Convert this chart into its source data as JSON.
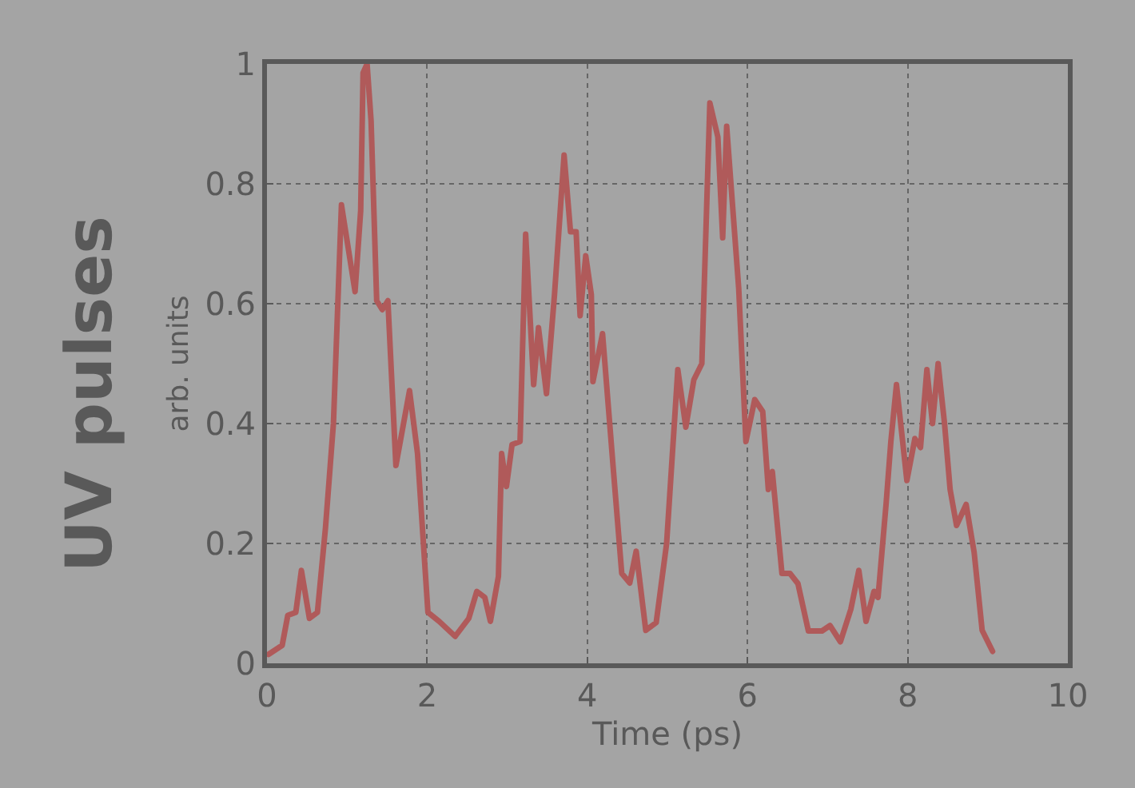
{
  "chart_data": {
    "type": "line",
    "xlabel": "Time (ps)",
    "ylabel": "arb. units",
    "annotations": [
      "UV pulses"
    ],
    "xlim": [
      0,
      10
    ],
    "xticks": [
      0,
      2,
      4,
      6,
      8,
      10
    ],
    "ylim": [
      0,
      1
    ],
    "yticks": [
      0,
      0.2,
      0.4,
      0.6,
      0.8,
      1
    ],
    "grid": true,
    "marker": "none",
    "line_style": "solid",
    "series": [
      {
        "color": "#b05a5a",
        "x": [
          0.02,
          0.19,
          0.26,
          0.36,
          0.43,
          0.53,
          0.63,
          0.73,
          0.83,
          0.93,
          1.1,
          1.17,
          1.2,
          1.25,
          1.3,
          1.37,
          1.44,
          1.51,
          1.61,
          1.78,
          1.88,
          2.01,
          2.15,
          2.35,
          2.52,
          2.62,
          2.72,
          2.79,
          2.89,
          2.93,
          2.99,
          3.06,
          3.16,
          3.23,
          3.33,
          3.39,
          3.49,
          3.59,
          3.71,
          3.79,
          3.86,
          3.91,
          3.98,
          4.05,
          4.07,
          4.19,
          4.33,
          4.43,
          4.53,
          4.61,
          4.73,
          4.86,
          4.99,
          5.13,
          5.23,
          5.33,
          5.43,
          5.53,
          5.63,
          5.69,
          5.74,
          5.89,
          5.98,
          6.09,
          6.19,
          6.26,
          6.31,
          6.43,
          6.53,
          6.63,
          6.76,
          6.93,
          7.03,
          7.16,
          7.29,
          7.39,
          7.48,
          7.58,
          7.63,
          7.73,
          7.79,
          7.86,
          7.99,
          8.09,
          8.16,
          8.24,
          8.31,
          8.38,
          8.46,
          8.53,
          8.61,
          8.73,
          8.83,
          8.93,
          9.06
        ],
        "values": [
          0.015,
          0.03,
          0.08,
          0.085,
          0.155,
          0.075,
          0.085,
          0.225,
          0.4,
          0.765,
          0.62,
          0.755,
          0.985,
          1.0,
          0.905,
          0.605,
          0.59,
          0.605,
          0.33,
          0.455,
          0.35,
          0.085,
          0.07,
          0.045,
          0.075,
          0.12,
          0.11,
          0.07,
          0.145,
          0.35,
          0.295,
          0.365,
          0.37,
          0.716,
          0.465,
          0.56,
          0.45,
          0.615,
          0.848,
          0.72,
          0.72,
          0.58,
          0.68,
          0.615,
          0.47,
          0.55,
          0.315,
          0.15,
          0.134,
          0.187,
          0.055,
          0.068,
          0.2,
          0.49,
          0.394,
          0.473,
          0.5,
          0.935,
          0.878,
          0.71,
          0.896,
          0.626,
          0.37,
          0.44,
          0.42,
          0.29,
          0.32,
          0.15,
          0.15,
          0.133,
          0.054,
          0.054,
          0.063,
          0.036,
          0.09,
          0.155,
          0.07,
          0.12,
          0.11,
          0.265,
          0.37,
          0.465,
          0.305,
          0.375,
          0.36,
          0.49,
          0.4,
          0.5,
          0.4,
          0.29,
          0.23,
          0.265,
          0.185,
          0.055,
          0.02
        ]
      }
    ]
  }
}
